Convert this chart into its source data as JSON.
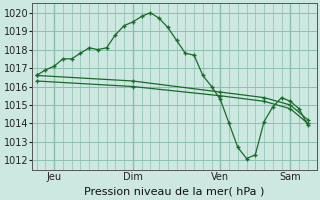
{
  "title": "Pression niveau de la mer( hPa )",
  "bg_color": "#cce8e0",
  "grid_color": "#8bbfb0",
  "line_color": "#1a6b2a",
  "ylim": [
    1011.5,
    1020.5
  ],
  "yticks": [
    1012,
    1013,
    1014,
    1015,
    1016,
    1017,
    1018,
    1019,
    1020
  ],
  "xlim": [
    -0.5,
    32
  ],
  "vline_positions": [
    2,
    11,
    21,
    29
  ],
  "xtick_labels": [
    "Jeu",
    "Dim",
    "Ven",
    "Sam"
  ],
  "line1_x": [
    0,
    1,
    2,
    3,
    4,
    5,
    6,
    7,
    8,
    9,
    10,
    11,
    12,
    13,
    14,
    15,
    16,
    17,
    18,
    19,
    20,
    21,
    22,
    23,
    24,
    25,
    26,
    27,
    28,
    29,
    30,
    31
  ],
  "line1_y": [
    1016.6,
    1016.9,
    1017.1,
    1017.5,
    1017.5,
    1017.8,
    1018.1,
    1018.0,
    1018.1,
    1018.8,
    1019.3,
    1019.5,
    1019.8,
    1020.0,
    1019.7,
    1019.2,
    1018.5,
    1017.8,
    1017.7,
    1016.6,
    1016.0,
    1015.3,
    1014.0,
    1012.7,
    1012.1,
    1012.3,
    1014.1,
    1014.9,
    1015.4,
    1015.2,
    1014.8,
    1013.9
  ],
  "line2_x": [
    0,
    11,
    21,
    26,
    29,
    31
  ],
  "line2_y": [
    1016.3,
    1016.0,
    1015.5,
    1015.2,
    1014.8,
    1014.0
  ],
  "line3_x": [
    0,
    11,
    21,
    26,
    29,
    31
  ],
  "line3_y": [
    1016.6,
    1016.3,
    1015.7,
    1015.4,
    1015.0,
    1014.2
  ],
  "ylabel_fontsize": 7,
  "xlabel_fontsize": 7,
  "title_fontsize": 8
}
